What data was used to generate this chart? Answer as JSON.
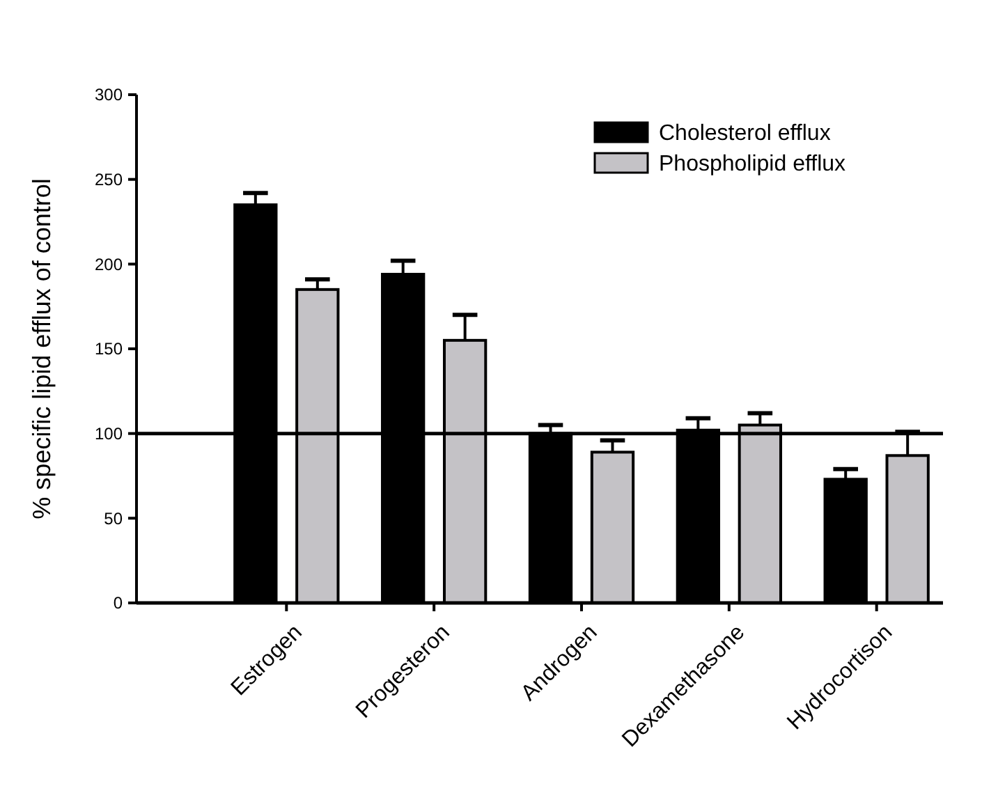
{
  "chart_data": {
    "type": "bar",
    "ylabel": "% specific lipid efflux of control",
    "categories": [
      "Estrogen",
      "Progesteron",
      "Androgen",
      "Dexamethasone",
      "Hydrocortison"
    ],
    "series": [
      {
        "name": "Cholesterol efflux",
        "color": "#000000",
        "values": [
          235,
          194,
          100,
          102,
          73
        ],
        "errors": [
          [
            235,
            242
          ],
          [
            194,
            202
          ],
          [
            100,
            105
          ],
          [
            102,
            109
          ],
          [
            73,
            79
          ]
        ]
      },
      {
        "name": "Phospholipid efflux",
        "color": "#c4c2c6",
        "values": [
          185,
          155,
          89,
          105,
          87
        ],
        "errors": [
          [
            185,
            191
          ],
          [
            155,
            170
          ],
          [
            89,
            96
          ],
          [
            105,
            112
          ],
          [
            87,
            101
          ]
        ]
      }
    ],
    "ylim": [
      0,
      300
    ],
    "yticks": [
      0,
      50,
      100,
      150,
      200,
      250,
      300
    ],
    "ref_lines": [
      {
        "axis": "y",
        "value": 100,
        "color": "#000000"
      }
    ],
    "legend": "top right",
    "grid": false
  }
}
